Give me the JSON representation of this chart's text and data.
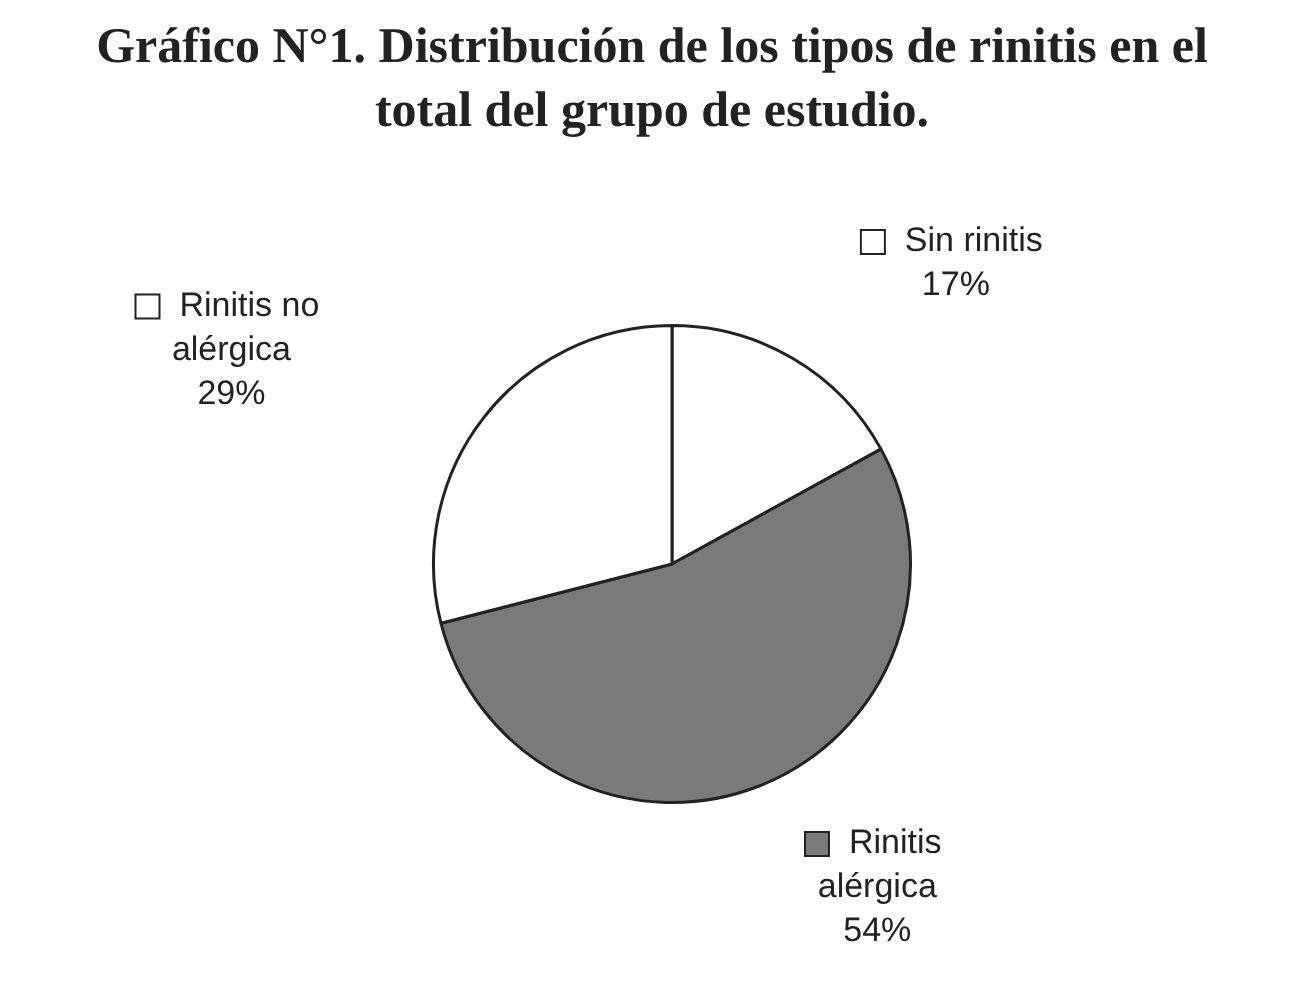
{
  "chart_data": {
    "type": "pie",
    "title": "Gráfico N°1.  Distribución de los tipos de rinitis en el total del grupo de estudio.",
    "categories": [
      "Sin rinitis",
      "Rinitis alérgica",
      "Rinitis no alérgica"
    ],
    "values": [
      17,
      54,
      29
    ],
    "colors": [
      "#ffffff",
      "#7a7a7a",
      "#ffffff"
    ],
    "value_labels": [
      "17%",
      "54%",
      "29%"
    ],
    "legend": "bottom left"
  }
}
